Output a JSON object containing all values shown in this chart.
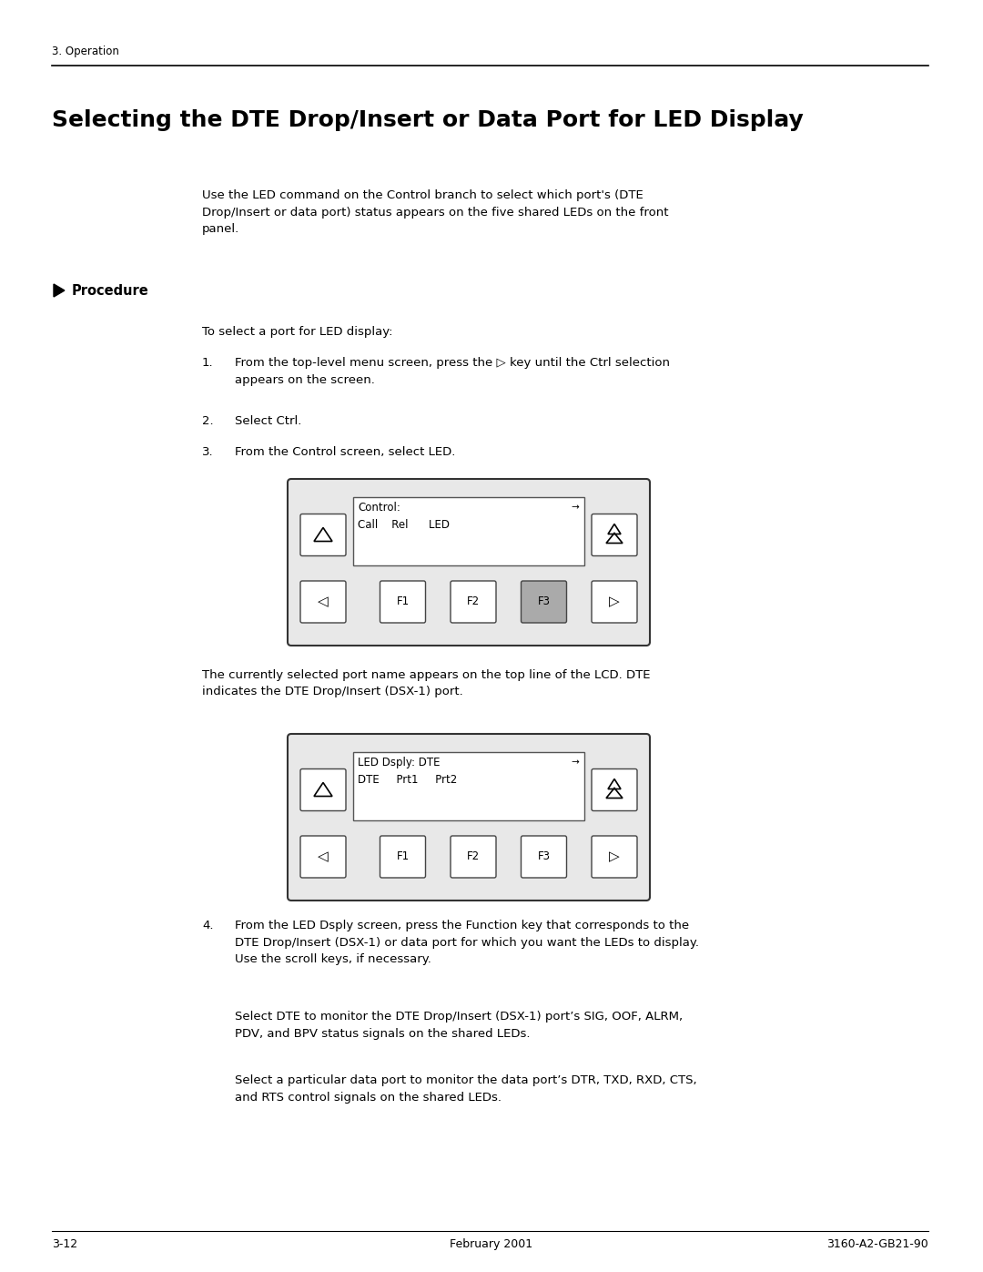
{
  "page_header": "3. Operation",
  "title": "Selecting the DTE Drop/Insert or Data Port for LED Display",
  "intro_text": "Use the LED command on the Control branch to select which port's (DTE\nDrop/Insert or data port) status appears on the five shared LEDs on the front\npanel.",
  "procedure_label": "Procedure",
  "procedure_intro": "To select a port for LED display:",
  "step1": "From the top-level menu screen, press the ▷ key until the Ctrl selection\nappears on the screen.",
  "step2": "Select Ctrl.",
  "step3": "From the Control screen, select LED.",
  "diagram1_line1": "Control:",
  "diagram1_line2": "Call    Rel      LED",
  "desc_after_diag1": "The currently selected port name appears on the top line of the LCD. DTE\nindicates the DTE Drop/Insert (DSX-1) port.",
  "diagram2_line1": "LED Dsply: DTE",
  "diagram2_line2": "DTE     Prt1     Prt2",
  "step4_line1": "From the LED Dsply screen, press the Function key that corresponds to the\nDTE Drop/Insert (DSX-1) or data port for which you want the LEDs to display.\nUse the scroll keys, if necessary.",
  "step4_para2": "Select DTE to monitor the DTE Drop/Insert (DSX-1) port’s SIG, OOF, ALRM,\nPDV, and BPV status signals on the shared LEDs.",
  "step4_para3": "Select a particular data port to monitor the data port’s DTR, TXD, RXD, CTS,\nand RTS control signals on the shared LEDs.",
  "footer_left": "3-12",
  "footer_center": "February 2001",
  "footer_right": "3160-A2-GB21-90",
  "bg_color": "#ffffff",
  "text_color": "#000000"
}
